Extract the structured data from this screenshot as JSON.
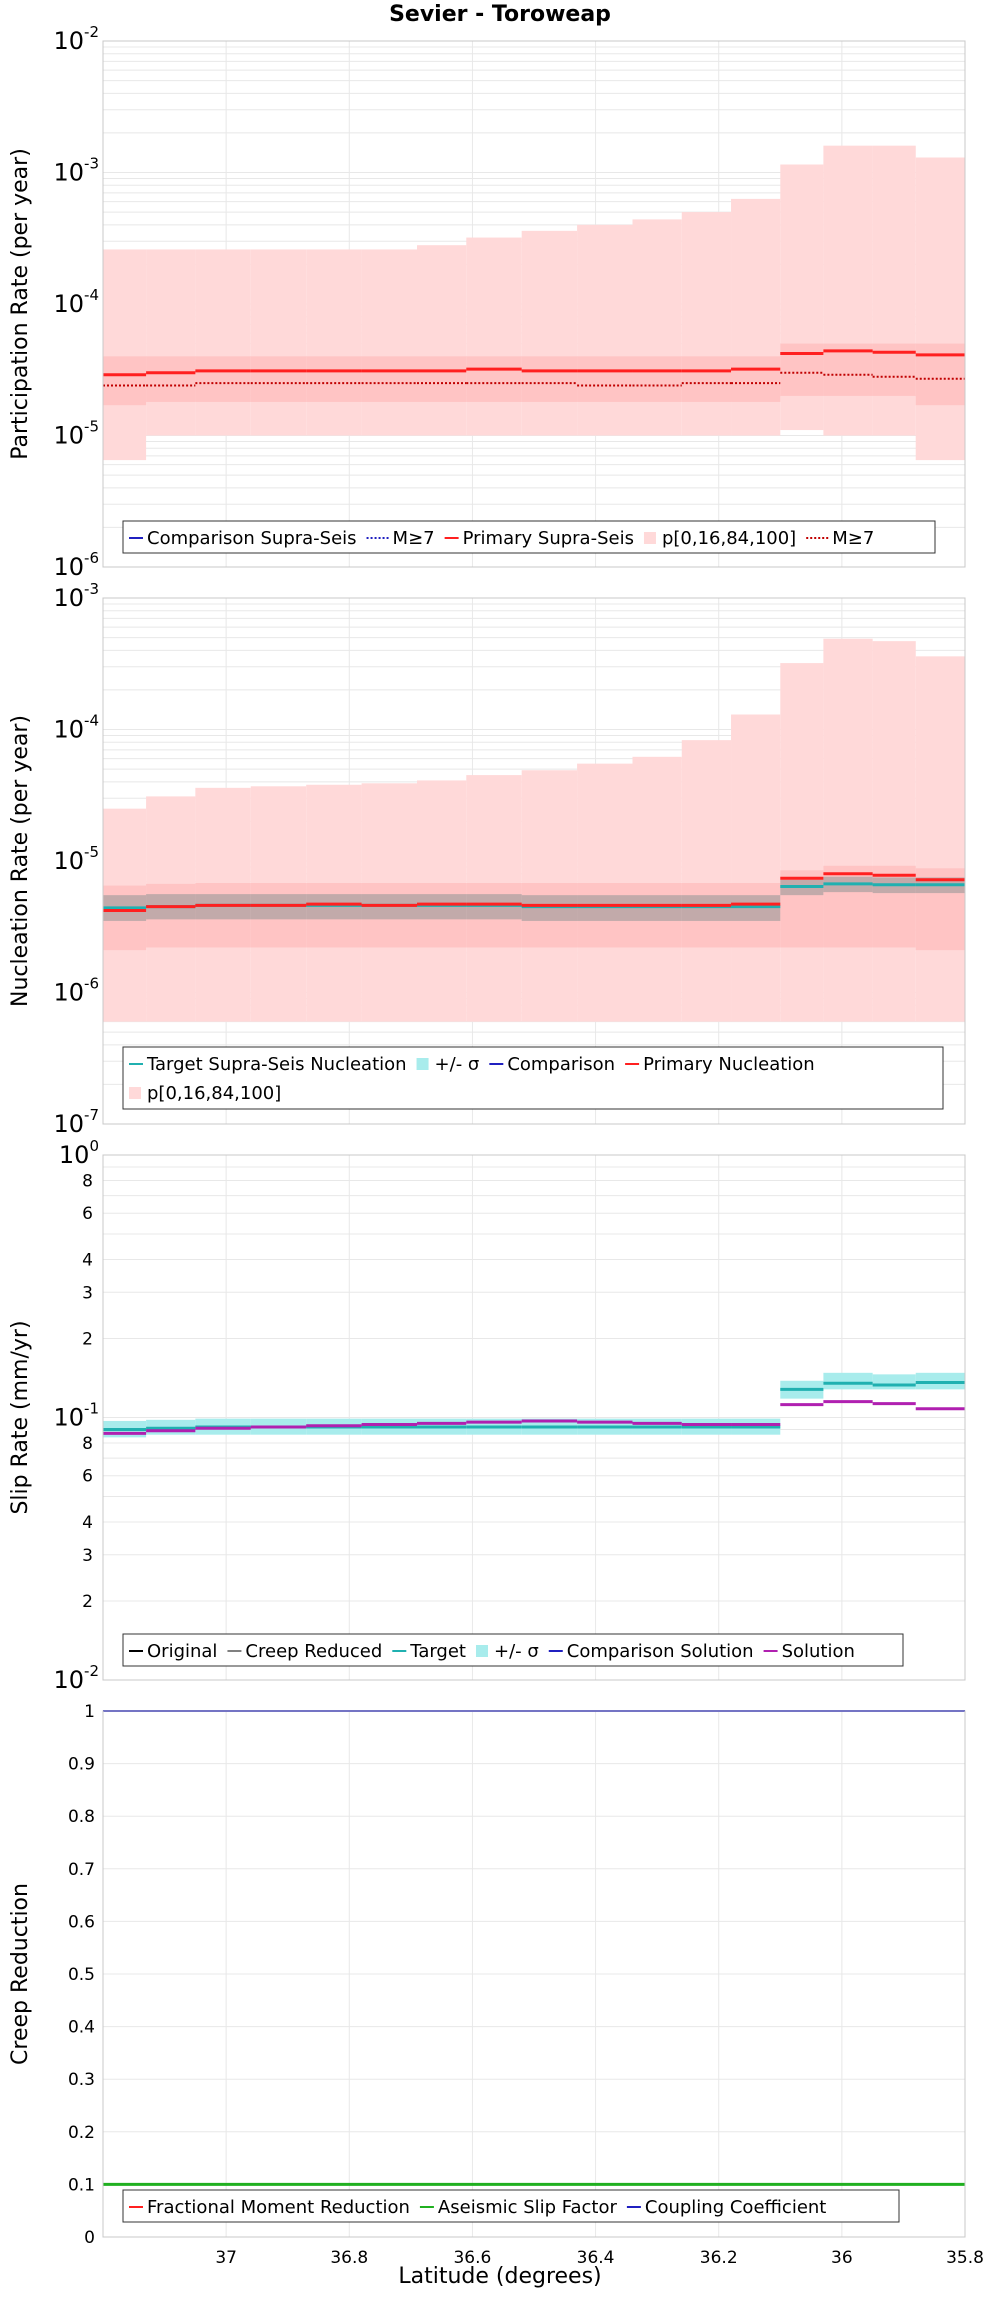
{
  "title": "Sevier - Toroweap",
  "xlabel": "Latitude (degrees)",
  "colors": {
    "primary": "#ff2020",
    "primary_band": "#ffd9d9",
    "comparison": "#2020c0",
    "target": "#20b0b0",
    "target_band": "#a8ecec",
    "grey": "#808080",
    "solution": "#b020b0",
    "original": "#000000",
    "aseismic": "#20b020",
    "grid": "#e8e8e8"
  },
  "chart_data": [
    {
      "type": "line",
      "panel": "participation",
      "ylabel": "Participation Rate (per year)",
      "yscale": "log",
      "ylim": [
        1e-06,
        0.01
      ],
      "xlim": [
        37.2,
        35.8
      ],
      "y_tick_labels": [
        {
          "base": "10",
          "exp": "-6"
        },
        {
          "base": "10",
          "exp": "-5"
        },
        {
          "base": "10",
          "exp": "-4"
        },
        {
          "base": "10",
          "exp": "-3"
        },
        {
          "base": "10",
          "exp": "-2"
        }
      ],
      "bin_edges": [
        37.2,
        37.13,
        37.05,
        36.96,
        36.87,
        36.78,
        36.69,
        36.61,
        36.52,
        36.43,
        36.34,
        36.26,
        36.18,
        36.1,
        36.03,
        35.95,
        35.88,
        35.8
      ],
      "bands": [
        {
          "name": "p[0,16,84,100]",
          "range": "p0-p100",
          "lower": [
            6.5e-06,
            1e-05,
            1e-05,
            1e-05,
            1e-05,
            1e-05,
            1e-05,
            1e-05,
            1e-05,
            1e-05,
            1e-05,
            1e-05,
            1e-05,
            1.1e-05,
            1e-05,
            1e-05,
            6.5e-06
          ],
          "upper": [
            0.00026,
            0.00026,
            0.00026,
            0.00026,
            0.00026,
            0.00026,
            0.00028,
            0.00032,
            0.00036,
            0.0004,
            0.00044,
            0.0005,
            0.00063,
            0.00115,
            0.0016,
            0.0016,
            0.0013
          ]
        },
        {
          "name": "p16-p84",
          "range": "p16-p84",
          "lower": [
            1.7e-05,
            1.8e-05,
            1.8e-05,
            1.8e-05,
            1.8e-05,
            1.8e-05,
            1.8e-05,
            1.8e-05,
            1.8e-05,
            1.8e-05,
            1.8e-05,
            1.8e-05,
            1.8e-05,
            2e-05,
            2e-05,
            2e-05,
            1.7e-05
          ],
          "upper": [
            4e-05,
            4e-05,
            4e-05,
            4e-05,
            4e-05,
            4e-05,
            4e-05,
            4e-05,
            4e-05,
            4e-05,
            4e-05,
            4e-05,
            4e-05,
            5e-05,
            5e-05,
            5e-05,
            5e-05
          ]
        }
      ],
      "series": [
        {
          "name": "Primary Supra-Seis",
          "style": "solid",
          "values": [
            2.9e-05,
            3e-05,
            3.1e-05,
            3.1e-05,
            3.1e-05,
            3.1e-05,
            3.1e-05,
            3.2e-05,
            3.1e-05,
            3.1e-05,
            3.1e-05,
            3.1e-05,
            3.2e-05,
            4.2e-05,
            4.4e-05,
            4.3e-05,
            4.1e-05
          ]
        },
        {
          "name": "M≥7",
          "style": "dotted",
          "values": [
            2.4e-05,
            2.4e-05,
            2.5e-05,
            2.5e-05,
            2.5e-05,
            2.5e-05,
            2.5e-05,
            2.5e-05,
            2.5e-05,
            2.4e-05,
            2.4e-05,
            2.5e-05,
            2.5e-05,
            3e-05,
            2.9e-05,
            2.8e-05,
            2.7e-05
          ]
        }
      ],
      "legend": [
        "Comparison Supra-Seis",
        "M≥7",
        "Primary Supra-Seis",
        "p[0,16,84,100]",
        "M≥7"
      ],
      "legend_position": "bottom"
    },
    {
      "type": "line",
      "panel": "nucleation",
      "ylabel": "Nucleation Rate (per year)",
      "yscale": "log",
      "ylim": [
        1e-07,
        0.001
      ],
      "xlim": [
        37.2,
        35.8
      ],
      "y_tick_labels": [
        {
          "base": "10",
          "exp": "-7"
        },
        {
          "base": "10",
          "exp": "-6"
        },
        {
          "base": "10",
          "exp": "-5"
        },
        {
          "base": "10",
          "exp": "-4"
        },
        {
          "base": "10",
          "exp": "-3"
        }
      ],
      "bin_edges": [
        37.2,
        37.13,
        37.05,
        36.96,
        36.87,
        36.78,
        36.69,
        36.61,
        36.52,
        36.43,
        36.34,
        36.26,
        36.18,
        36.1,
        36.03,
        35.95,
        35.88,
        35.8
      ],
      "bands": [
        {
          "name": "p[0,16,84,100]",
          "range": "p0-p100",
          "lower": [
            6e-07,
            6e-07,
            6e-07,
            6e-07,
            6e-07,
            6e-07,
            6e-07,
            6e-07,
            6e-07,
            6e-07,
            6e-07,
            6e-07,
            6e-07,
            6e-07,
            6e-07,
            6e-07,
            6e-07
          ],
          "upper": [
            2.5e-05,
            3.1e-05,
            3.6e-05,
            3.7e-05,
            3.8e-05,
            3.9e-05,
            4.1e-05,
            4.5e-05,
            4.9e-05,
            5.5e-05,
            6.2e-05,
            8.3e-05,
            0.00013,
            0.00032,
            0.00049,
            0.00047,
            0.00036
          ]
        },
        {
          "name": "p16-p84",
          "range": "p16-p84",
          "lower": [
            2.1e-06,
            2.2e-06,
            2.2e-06,
            2.2e-06,
            2.2e-06,
            2.2e-06,
            2.2e-06,
            2.2e-06,
            2.2e-06,
            2.2e-06,
            2.2e-06,
            2.2e-06,
            2.2e-06,
            2.2e-06,
            2.2e-06,
            2.2e-06,
            2.1e-06
          ],
          "upper": [
            6.5e-06,
            6.7e-06,
            6.8e-06,
            6.8e-06,
            6.8e-06,
            6.8e-06,
            6.8e-06,
            6.8e-06,
            6.8e-06,
            6.8e-06,
            6.8e-06,
            6.8e-06,
            6.8e-06,
            8.5e-06,
            9.2e-06,
            9.2e-06,
            8.8e-06
          ]
        },
        {
          "name": "+/- σ",
          "range": "target",
          "lower": [
            3.5e-06,
            3.6e-06,
            3.6e-06,
            3.6e-06,
            3.6e-06,
            3.6e-06,
            3.6e-06,
            3.6e-06,
            3.5e-06,
            3.5e-06,
            3.5e-06,
            3.5e-06,
            3.5e-06,
            5.5e-06,
            5.8e-06,
            5.7e-06,
            5.7e-06
          ],
          "upper": [
            5.5e-06,
            5.6e-06,
            5.6e-06,
            5.6e-06,
            5.6e-06,
            5.6e-06,
            5.6e-06,
            5.6e-06,
            5.5e-06,
            5.5e-06,
            5.5e-06,
            5.5e-06,
            5.5e-06,
            7.2e-06,
            7.6e-06,
            7.5e-06,
            7.5e-06
          ]
        }
      ],
      "series": [
        {
          "name": "Target Supra-Seis Nucleation",
          "values": [
            4.4e-06,
            4.5e-06,
            4.6e-06,
            4.6e-06,
            4.6e-06,
            4.6e-06,
            4.6e-06,
            4.6e-06,
            4.5e-06,
            4.5e-06,
            4.5e-06,
            4.5e-06,
            4.5e-06,
            6.4e-06,
            6.7e-06,
            6.6e-06,
            6.6e-06
          ]
        },
        {
          "name": "Primary Nucleation",
          "values": [
            4.2e-06,
            4.5e-06,
            4.6e-06,
            4.6e-06,
            4.7e-06,
            4.6e-06,
            4.7e-06,
            4.7e-06,
            4.6e-06,
            4.6e-06,
            4.6e-06,
            4.6e-06,
            4.7e-06,
            7.4e-06,
            8e-06,
            7.8e-06,
            7.2e-06
          ]
        }
      ],
      "legend": [
        "Target Supra-Seis Nucleation",
        "+/- σ",
        "Comparison",
        "Primary Nucleation",
        "p[0,16,84,100]"
      ],
      "legend_position": "bottom"
    },
    {
      "type": "line",
      "panel": "slip",
      "ylabel": "Slip Rate (mm/yr)",
      "yscale": "log",
      "ylim": [
        0.01,
        1
      ],
      "xlim": [
        37.2,
        35.8
      ],
      "y_tick_labels": [
        {
          "base": "10",
          "exp": "-2"
        },
        {
          "base": "10",
          "exp": "-1"
        },
        {
          "base": "10",
          "exp": "0"
        }
      ],
      "y_minor_labels": {
        "values": [
          0.02,
          0.03,
          0.04,
          0.06,
          0.08,
          0.2,
          0.3,
          0.4,
          0.6,
          0.8
        ],
        "labels": [
          "2",
          "3",
          "4",
          "6",
          "8",
          "2",
          "3",
          "4",
          "6",
          "8"
        ]
      },
      "bin_edges": [
        37.2,
        37.13,
        37.05,
        36.96,
        36.87,
        36.78,
        36.69,
        36.61,
        36.52,
        36.43,
        36.34,
        36.26,
        36.18,
        36.1,
        36.03,
        35.95,
        35.88,
        35.8
      ],
      "bands": [
        {
          "name": "+/- σ",
          "range": "target",
          "lower": [
            0.084,
            0.086,
            0.086,
            0.086,
            0.086,
            0.086,
            0.086,
            0.086,
            0.086,
            0.086,
            0.086,
            0.086,
            0.086,
            0.118,
            0.128,
            0.128,
            0.128
          ],
          "upper": [
            0.097,
            0.098,
            0.099,
            0.099,
            0.099,
            0.099,
            0.099,
            0.099,
            0.099,
            0.099,
            0.099,
            0.099,
            0.099,
            0.138,
            0.148,
            0.146,
            0.148
          ]
        }
      ],
      "series": [
        {
          "name": "Target",
          "values": [
            0.09,
            0.091,
            0.092,
            0.092,
            0.092,
            0.092,
            0.092,
            0.092,
            0.092,
            0.092,
            0.092,
            0.092,
            0.092,
            0.128,
            0.135,
            0.133,
            0.136
          ]
        },
        {
          "name": "Solution",
          "values": [
            0.087,
            0.089,
            0.091,
            0.092,
            0.093,
            0.094,
            0.095,
            0.096,
            0.097,
            0.096,
            0.095,
            0.094,
            0.094,
            0.112,
            0.115,
            0.113,
            0.108
          ]
        }
      ],
      "legend": [
        "Original",
        "Creep Reduced",
        "Target",
        "+/- σ",
        "Comparison Solution",
        "Solution"
      ],
      "legend_position": "bottom"
    },
    {
      "type": "line",
      "panel": "creep",
      "ylabel": "Creep Reduction",
      "yscale": "linear",
      "ylim": [
        0,
        1
      ],
      "xlim": [
        37.2,
        35.8
      ],
      "y_ticks": [
        0,
        0.1,
        0.2,
        0.3,
        0.4,
        0.5,
        0.6,
        0.7,
        0.8,
        0.9,
        1
      ],
      "y_tick_labels": [
        "0",
        "0.1",
        "0.2",
        "0.3",
        "0.4",
        "0.5",
        "0.6",
        "0.7",
        "0.8",
        "0.9",
        "1"
      ],
      "x_ticks": [
        37,
        36.8,
        36.6,
        36.4,
        36.2,
        36,
        35.8
      ],
      "x_tick_labels": [
        "37",
        "36.8",
        "36.6",
        "36.4",
        "36.2",
        "36",
        "35.8"
      ],
      "series": [
        {
          "name": "Aseismic Slip Factor",
          "x": [
            37.2,
            35.8
          ],
          "y": [
            0.1,
            0.1
          ]
        },
        {
          "name": "Coupling Coefficient",
          "x": [
            37.2,
            35.8
          ],
          "y": [
            1,
            1
          ]
        }
      ],
      "legend": [
        "Fractional Moment Reduction",
        "Aseismic Slip Factor",
        "Coupling Coefficient"
      ],
      "legend_position": "bottom"
    }
  ]
}
